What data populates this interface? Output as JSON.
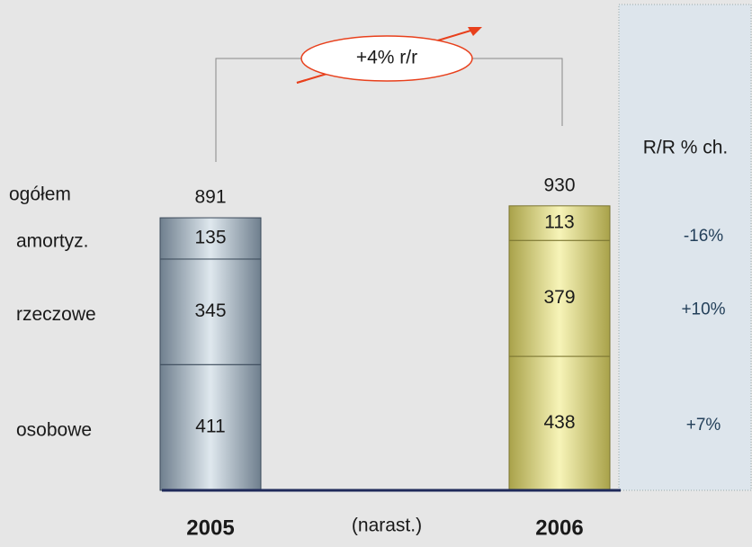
{
  "chart_data": {
    "type": "stacked_bar",
    "categories": [
      "2005",
      "2006"
    ],
    "colors": [
      "#aebcc8",
      "#e4df86"
    ],
    "total_label": "ogółem",
    "totals": [
      891,
      930
    ],
    "series": [
      {
        "name": "osobowe",
        "values": [
          411,
          438
        ]
      },
      {
        "name": "rzeczowe",
        "values": [
          345,
          379
        ]
      },
      {
        "name": "amortyz.",
        "values": [
          135,
          113
        ]
      }
    ],
    "period_note": "(narast.)",
    "annotation": "+4% r/r",
    "change_header": "R/R % ch.",
    "changes": [
      "+7%",
      "+10%",
      "-16%"
    ]
  }
}
